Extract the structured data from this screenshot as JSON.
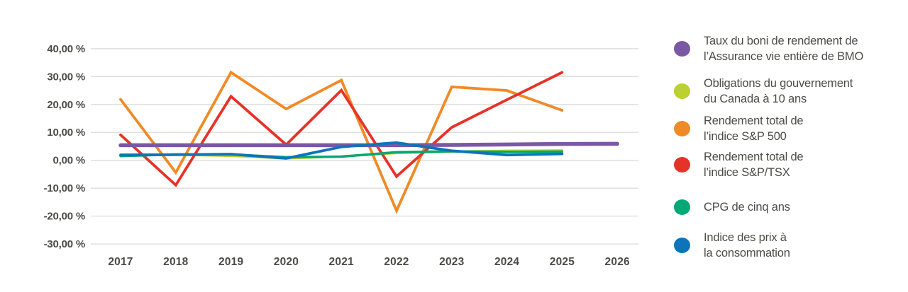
{
  "chart_data": {
    "type": "line",
    "title": "",
    "xlabel": "",
    "ylabel": "",
    "x": [
      2017,
      2018,
      2019,
      2020,
      2021,
      2022,
      2023,
      2024,
      2025,
      2026
    ],
    "x_labels": [
      "2017",
      "2018",
      "2019",
      "2020",
      "2021",
      "2022",
      "2023",
      "2024",
      "2025",
      "2026"
    ],
    "yticks": [
      40,
      30,
      20,
      10,
      0,
      -10,
      -20,
      -30
    ],
    "ytick_labels": [
      "40,00 %",
      "30,00 %",
      "20,00 %",
      "10,00 %",
      "0,00 %",
      "-10,00 %",
      "-20,00 %",
      "-30,00 %"
    ],
    "ylim": [
      -33,
      43
    ],
    "grid": true,
    "legend_position": "right",
    "series": [
      {
        "name": "Taux du boni de rendement de l’Assurance vie entière de BMO",
        "color": "#7B58A3",
        "line_width": 5.5,
        "values": [
          5.4,
          5.4,
          5.4,
          5.4,
          5.4,
          5.4,
          5.5,
          5.65,
          5.85,
          5.9
        ]
      },
      {
        "name": "Obligations du gouvernement du Canada à 10 ans",
        "color": "#BCD02F",
        "line_width": 3.4,
        "values": [
          2.0,
          2.0,
          1.6,
          0.7,
          1.4,
          2.6,
          3.1,
          3.4,
          3.5,
          null
        ]
      },
      {
        "name": "Rendement total de l’indice S&P 500",
        "color": "#F08A27",
        "line_width": 3.8,
        "values": [
          21.8,
          -4.4,
          31.5,
          18.4,
          28.7,
          -18.1,
          26.3,
          25.0,
          17.9,
          null
        ]
      },
      {
        "name": "Rendement total de l’indice S&P/TSX",
        "color": "#E6332A",
        "line_width": 3.8,
        "values": [
          9.1,
          -8.9,
          22.9,
          5.6,
          25.1,
          -5.8,
          11.8,
          21.7,
          31.5,
          null
        ]
      },
      {
        "name": "CPG de cinq ans",
        "color": "#00A876",
        "line_width": 3.4,
        "values": [
          1.5,
          2.1,
          2.1,
          1.1,
          1.3,
          2.9,
          3.2,
          3.0,
          3.1,
          null
        ]
      },
      {
        "name": "Indice des prix à la consommation",
        "color": "#0C74BB",
        "line_width": 3.8,
        "values": [
          1.9,
          2.0,
          2.2,
          0.7,
          4.8,
          6.3,
          3.4,
          1.9,
          2.3,
          null
        ]
      }
    ],
    "draw_order": [
      1,
      2,
      3,
      0,
      4,
      5
    ],
    "colors": {
      "grid_line": "#DBDBD9",
      "axis_text": "#4B4C45"
    }
  },
  "legend": {
    "items": [
      {
        "line1": "Taux du boni de rendement de",
        "line2": "l’Assurance vie entière de BMO",
        "color": "#7B58A3"
      },
      {
        "line1": "Obligations du gouvernement",
        "line2": "du Canada à 10 ans",
        "color": "#BCD02F"
      },
      {
        "line1": "Rendement total de",
        "line2": "l’indice S&P 500",
        "color": "#F08A27"
      },
      {
        "line1": "Rendement total de",
        "line2": "l’indice S&P/TSX",
        "color": "#E6332A"
      },
      {
        "line1": "CPG de cinq ans",
        "line2": "",
        "color": "#00A876"
      },
      {
        "line1": "Indice des prix à",
        "line2": "la consommation",
        "color": "#0C74BB"
      }
    ]
  }
}
